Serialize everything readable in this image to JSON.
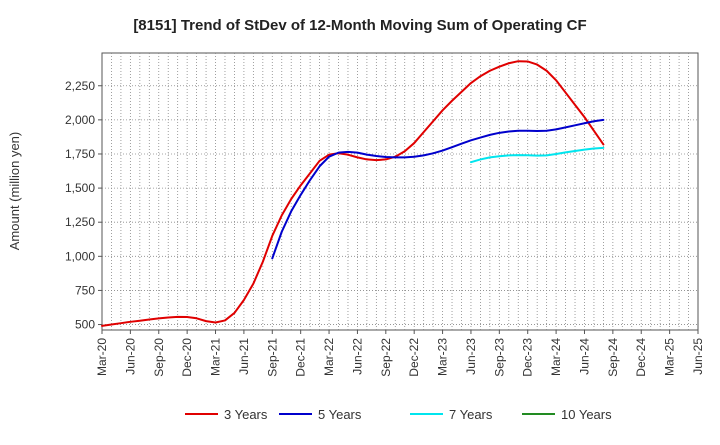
{
  "chart_data": {
    "type": "line",
    "title": "[8151]  Trend of StDev of 12-Month Moving Sum of Operating CF",
    "ylabel": "Amount (million yen)",
    "xlabel": "",
    "x_ticks": [
      "Mar-20",
      "Jun-20",
      "Sep-20",
      "Dec-20",
      "Mar-21",
      "Jun-21",
      "Sep-21",
      "Dec-21",
      "Mar-22",
      "Jun-22",
      "Sep-22",
      "Dec-22",
      "Mar-23",
      "Jun-23",
      "Sep-23",
      "Dec-23",
      "Mar-24",
      "Jun-24",
      "Sep-24",
      "Dec-24",
      "Mar-25",
      "Jun-25"
    ],
    "y_ticks": [
      500,
      750,
      1000,
      1250,
      1500,
      1750,
      2000,
      2250
    ],
    "y_tick_labels": [
      "500",
      "750",
      "1,000",
      "1,250",
      "1,500",
      "1,750",
      "2,000",
      "2,250"
    ],
    "ylim": [
      460,
      2490
    ],
    "grid": true,
    "legend_position": "bottom",
    "series": [
      {
        "name": "3 Years",
        "color": "#e00000",
        "start_index": 0,
        "values": [
          490,
          500,
          510,
          520,
          528,
          537,
          545,
          552,
          556,
          555,
          546,
          525,
          515,
          530,
          585,
          680,
          800,
          960,
          1150,
          1300,
          1420,
          1520,
          1610,
          1700,
          1745,
          1755,
          1745,
          1725,
          1710,
          1705,
          1710,
          1730,
          1770,
          1830,
          1910,
          1990,
          2070,
          2140,
          2205,
          2270,
          2320,
          2360,
          2390,
          2415,
          2430,
          2428,
          2405,
          2360,
          2290,
          2200,
          2110,
          2020,
          1920,
          1820
        ]
      },
      {
        "name": "5 Years",
        "color": "#0000cc",
        "start_index": 18,
        "values": [
          985,
          1180,
          1330,
          1450,
          1560,
          1660,
          1730,
          1760,
          1765,
          1760,
          1745,
          1735,
          1728,
          1725,
          1725,
          1730,
          1740,
          1755,
          1775,
          1800,
          1825,
          1850,
          1870,
          1890,
          1905,
          1915,
          1920,
          1920,
          1918,
          1920,
          1930,
          1945,
          1960,
          1975,
          1990,
          2000
        ]
      },
      {
        "name": "7 Years",
        "color": "#00e5ee",
        "start_index": 39,
        "values": [
          1690,
          1710,
          1725,
          1733,
          1740,
          1742,
          1741,
          1738,
          1740,
          1750,
          1762,
          1772,
          1782,
          1790,
          1795
        ]
      },
      {
        "name": "10 Years",
        "color": "#228b22",
        "start_index": 0,
        "values": []
      }
    ]
  }
}
